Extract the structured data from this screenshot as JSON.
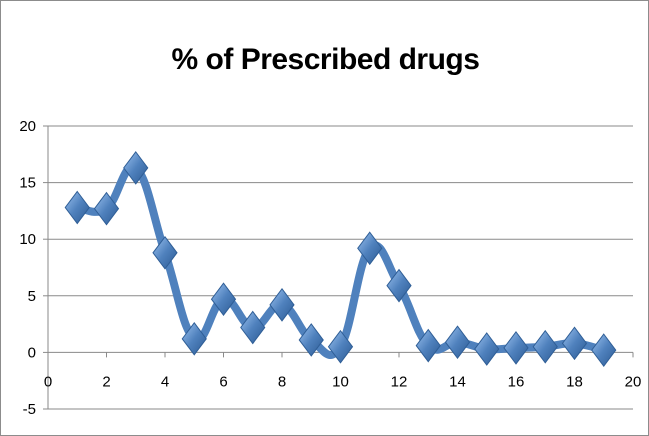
{
  "chart_data": {
    "type": "line",
    "title": "% of Prescribed drugs",
    "xlabel": "",
    "ylabel": "",
    "xlim": [
      0,
      20
    ],
    "ylim": [
      -5,
      20
    ],
    "x_ticks": [
      0,
      2,
      4,
      6,
      8,
      10,
      12,
      14,
      16,
      18,
      20
    ],
    "y_ticks": [
      -5,
      0,
      5,
      10,
      15,
      20
    ],
    "grid": "horizontal",
    "legend": "none",
    "line_style": "smoothed",
    "marker": "diamond",
    "series_color": "#4f81bd",
    "series": [
      {
        "x": [
          1,
          2,
          3,
          4,
          5,
          6,
          7,
          8,
          9,
          10,
          11,
          12,
          13,
          14,
          15,
          16,
          17,
          18,
          19
        ],
        "values": [
          12.8,
          12.7,
          16.3,
          8.8,
          1.2,
          4.7,
          2.2,
          4.2,
          1.1,
          0.5,
          9.2,
          5.9,
          0.6,
          0.9,
          0.3,
          0.4,
          0.5,
          0.8,
          0.2
        ]
      }
    ]
  }
}
